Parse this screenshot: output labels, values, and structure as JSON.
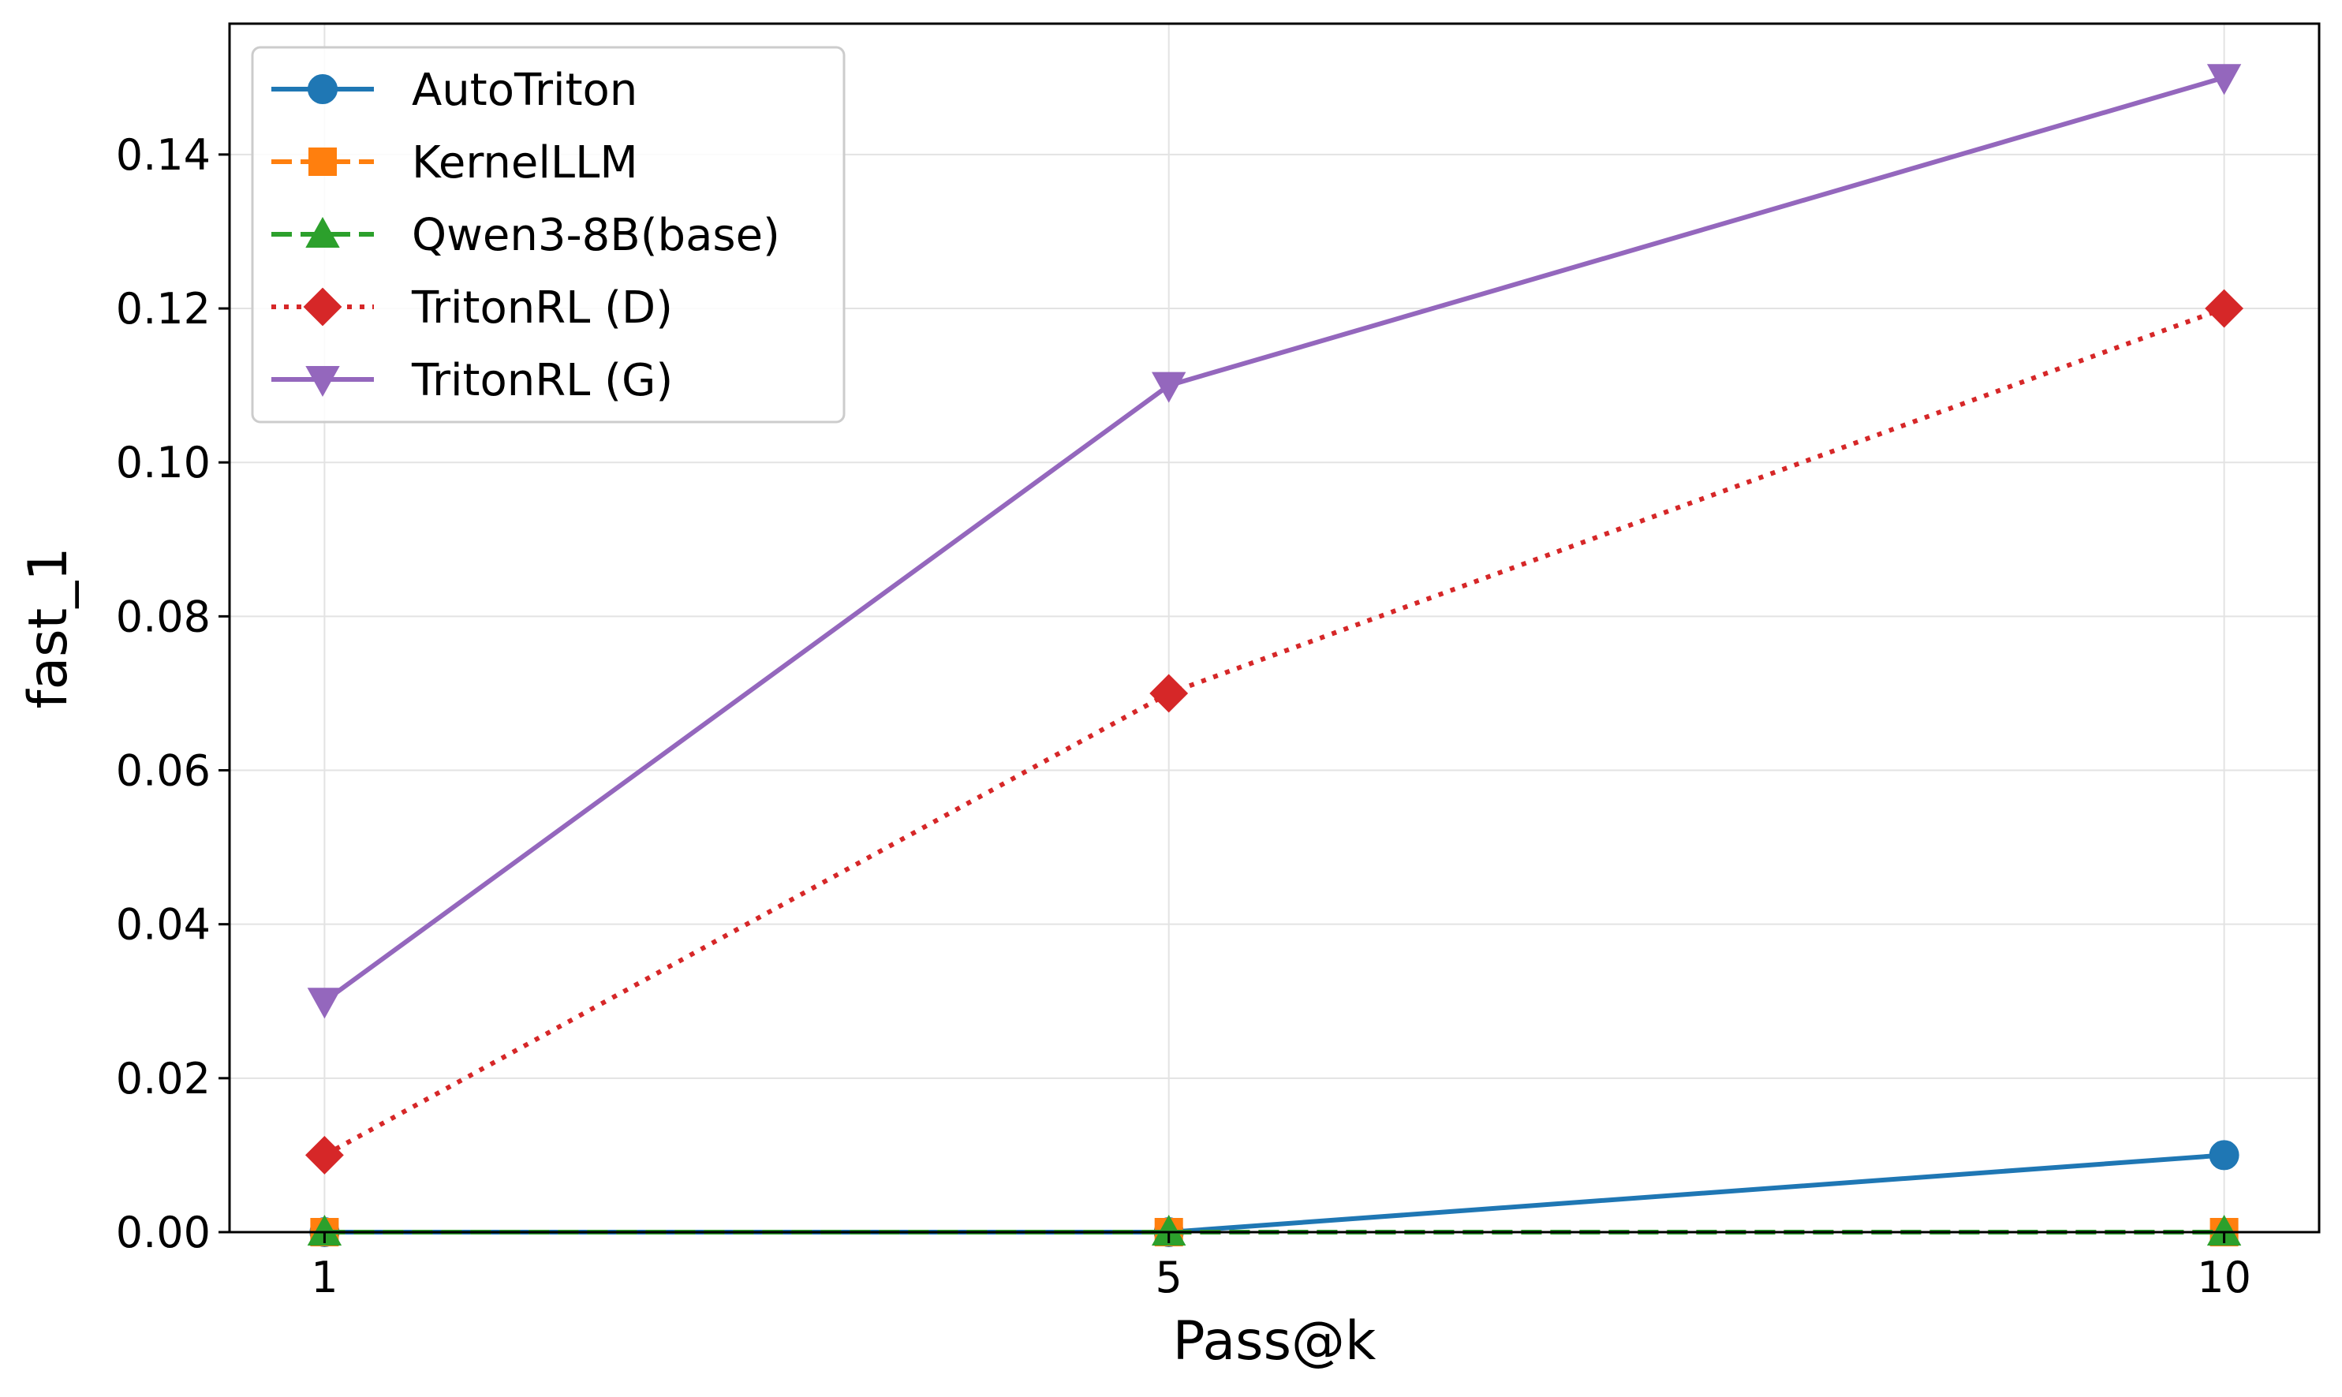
{
  "chart_data": {
    "type": "line",
    "xlabel": "Pass@k",
    "ylabel": "fast_1",
    "x": [
      1,
      5,
      10
    ],
    "x_ticks": [
      "1",
      "5",
      "10"
    ],
    "xlim": [
      0.55,
      10.45
    ],
    "ylim": [
      0,
      0.157
    ],
    "y_ticks": [
      0.0,
      0.02,
      0.04,
      0.06,
      0.08,
      0.1,
      0.12,
      0.14
    ],
    "y_tick_labels": [
      "0.00",
      "0.02",
      "0.04",
      "0.06",
      "0.08",
      "0.10",
      "0.12",
      "0.14"
    ],
    "grid": true,
    "legend_position": "top-left",
    "series": [
      {
        "name": "AutoTriton",
        "values": [
          0,
          0,
          0.01
        ],
        "color": "#1f77b4",
        "linestyle": "solid",
        "marker": "circle"
      },
      {
        "name": "KernelLLM",
        "values": [
          0,
          0,
          0
        ],
        "color": "#ff7f0e",
        "linestyle": "dashed",
        "marker": "square"
      },
      {
        "name": "Qwen3-8B(base)",
        "values": [
          0,
          0,
          0
        ],
        "color": "#2ca02c",
        "linestyle": "dashed",
        "marker": "triangle-up"
      },
      {
        "name": "TritonRL (D)",
        "values": [
          0.01,
          0.07,
          0.12
        ],
        "color": "#d62728",
        "linestyle": "dotted",
        "marker": "diamond"
      },
      {
        "name": "TritonRL (G)",
        "values": [
          0.03,
          0.11,
          0.15
        ],
        "color": "#9467bd",
        "linestyle": "solid",
        "marker": "triangle-down"
      }
    ]
  }
}
